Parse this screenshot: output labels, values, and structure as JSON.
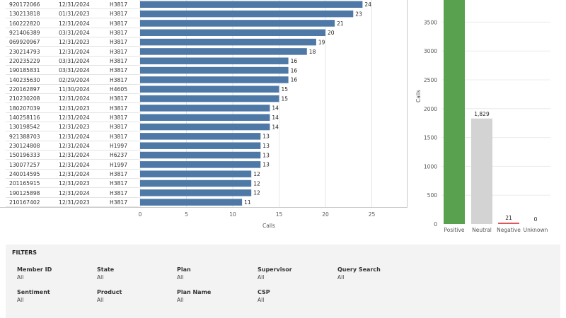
{
  "bar_chart": {
    "xlabel": "Calls",
    "x_ticks": [
      0,
      5,
      10,
      15,
      20,
      25
    ],
    "xlim": [
      0,
      28
    ],
    "bar_color": "#4e79a7"
  },
  "table_rows": [
    {
      "id": "920172066",
      "date": "12/31/2024",
      "plan": "H3817"
    },
    {
      "id": "130213818",
      "date": "01/31/2023",
      "plan": "H3817"
    },
    {
      "id": "160222820",
      "date": "12/31/2024",
      "plan": "H3817"
    },
    {
      "id": "921406389",
      "date": "03/31/2024",
      "plan": "H3817"
    },
    {
      "id": "069920967",
      "date": "12/31/2023",
      "plan": "H3817"
    },
    {
      "id": "230214793",
      "date": "12/31/2024",
      "plan": "H3817"
    },
    {
      "id": "220235229",
      "date": "03/31/2024",
      "plan": "H3817"
    },
    {
      "id": "190185831",
      "date": "03/31/2024",
      "plan": "H3817"
    },
    {
      "id": "140235630",
      "date": "02/29/2024",
      "plan": "H3817"
    },
    {
      "id": "220162897",
      "date": "11/30/2024",
      "plan": "H4605"
    },
    {
      "id": "210230208",
      "date": "12/31/2024",
      "plan": "H3817"
    },
    {
      "id": "180207039",
      "date": "12/31/2023",
      "plan": "H3817"
    },
    {
      "id": "140258116",
      "date": "12/31/2024",
      "plan": "H3817"
    },
    {
      "id": "130198542",
      "date": "12/31/2023",
      "plan": "H3817"
    },
    {
      "id": "921388703",
      "date": "12/31/2024",
      "plan": "H3817"
    },
    {
      "id": "230124808",
      "date": "12/31/2024",
      "plan": "H1997"
    },
    {
      "id": "150196333",
      "date": "12/31/2024",
      "plan": "H6237"
    },
    {
      "id": "130077257",
      "date": "12/31/2024",
      "plan": "H1997"
    },
    {
      "id": "240014595",
      "date": "12/31/2024",
      "plan": "H3817"
    },
    {
      "id": "201165915",
      "date": "12/31/2023",
      "plan": "H3817"
    },
    {
      "id": "190125898",
      "date": "12/31/2024",
      "plan": "H3817"
    },
    {
      "id": "210167402",
      "date": "12/31/2023",
      "plan": "H3817"
    }
  ],
  "sentiment_chart": {
    "ylabel": "Calls",
    "y_ticks": [
      0,
      500,
      1000,
      1500,
      2000,
      2500,
      3000,
      3500
    ]
  },
  "chart_data": [
    {
      "type": "bar",
      "orientation": "horizontal",
      "categories": [
        "920172066",
        "130213818",
        "160222820",
        "921406389",
        "069920967",
        "230214793",
        "220235229",
        "190185831",
        "140235630",
        "220162897",
        "210230208",
        "180207039",
        "140258116",
        "130198542",
        "921388703",
        "230124808",
        "150196333",
        "130077257",
        "240014595",
        "201165915",
        "190125898",
        "210167402"
      ],
      "values": [
        24,
        23,
        21,
        20,
        19,
        18,
        16,
        16,
        16,
        15,
        15,
        14,
        14,
        14,
        13,
        13,
        13,
        13,
        12,
        12,
        12,
        11
      ],
      "xlabel": "Calls",
      "xlim": [
        0,
        28
      ],
      "grid": true
    },
    {
      "type": "bar",
      "categories": [
        "Positive",
        "Neutral",
        "Negative",
        "Unknown"
      ],
      "values": [
        3900,
        1829,
        21,
        0
      ],
      "labels": [
        "",
        "1,829",
        "21",
        "0"
      ],
      "colors": [
        "#59a14f",
        "#d3d3d3",
        "#e15759",
        "#bdbdbd"
      ],
      "ylabel": "Calls",
      "ylim": [
        0,
        3900
      ],
      "grid": true
    }
  ],
  "filters": {
    "title": "FILTERS",
    "items": [
      {
        "label": "Member ID",
        "value": "All"
      },
      {
        "label": "State",
        "value": "All"
      },
      {
        "label": "Plan",
        "value": "All"
      },
      {
        "label": "Supervisor",
        "value": "All"
      },
      {
        "label": "Query Search",
        "value": "All"
      },
      {
        "label": "Sentiment",
        "value": "All"
      },
      {
        "label": "Product",
        "value": "All"
      },
      {
        "label": "Plan Name",
        "value": "All"
      },
      {
        "label": "CSP",
        "value": "All"
      }
    ]
  }
}
